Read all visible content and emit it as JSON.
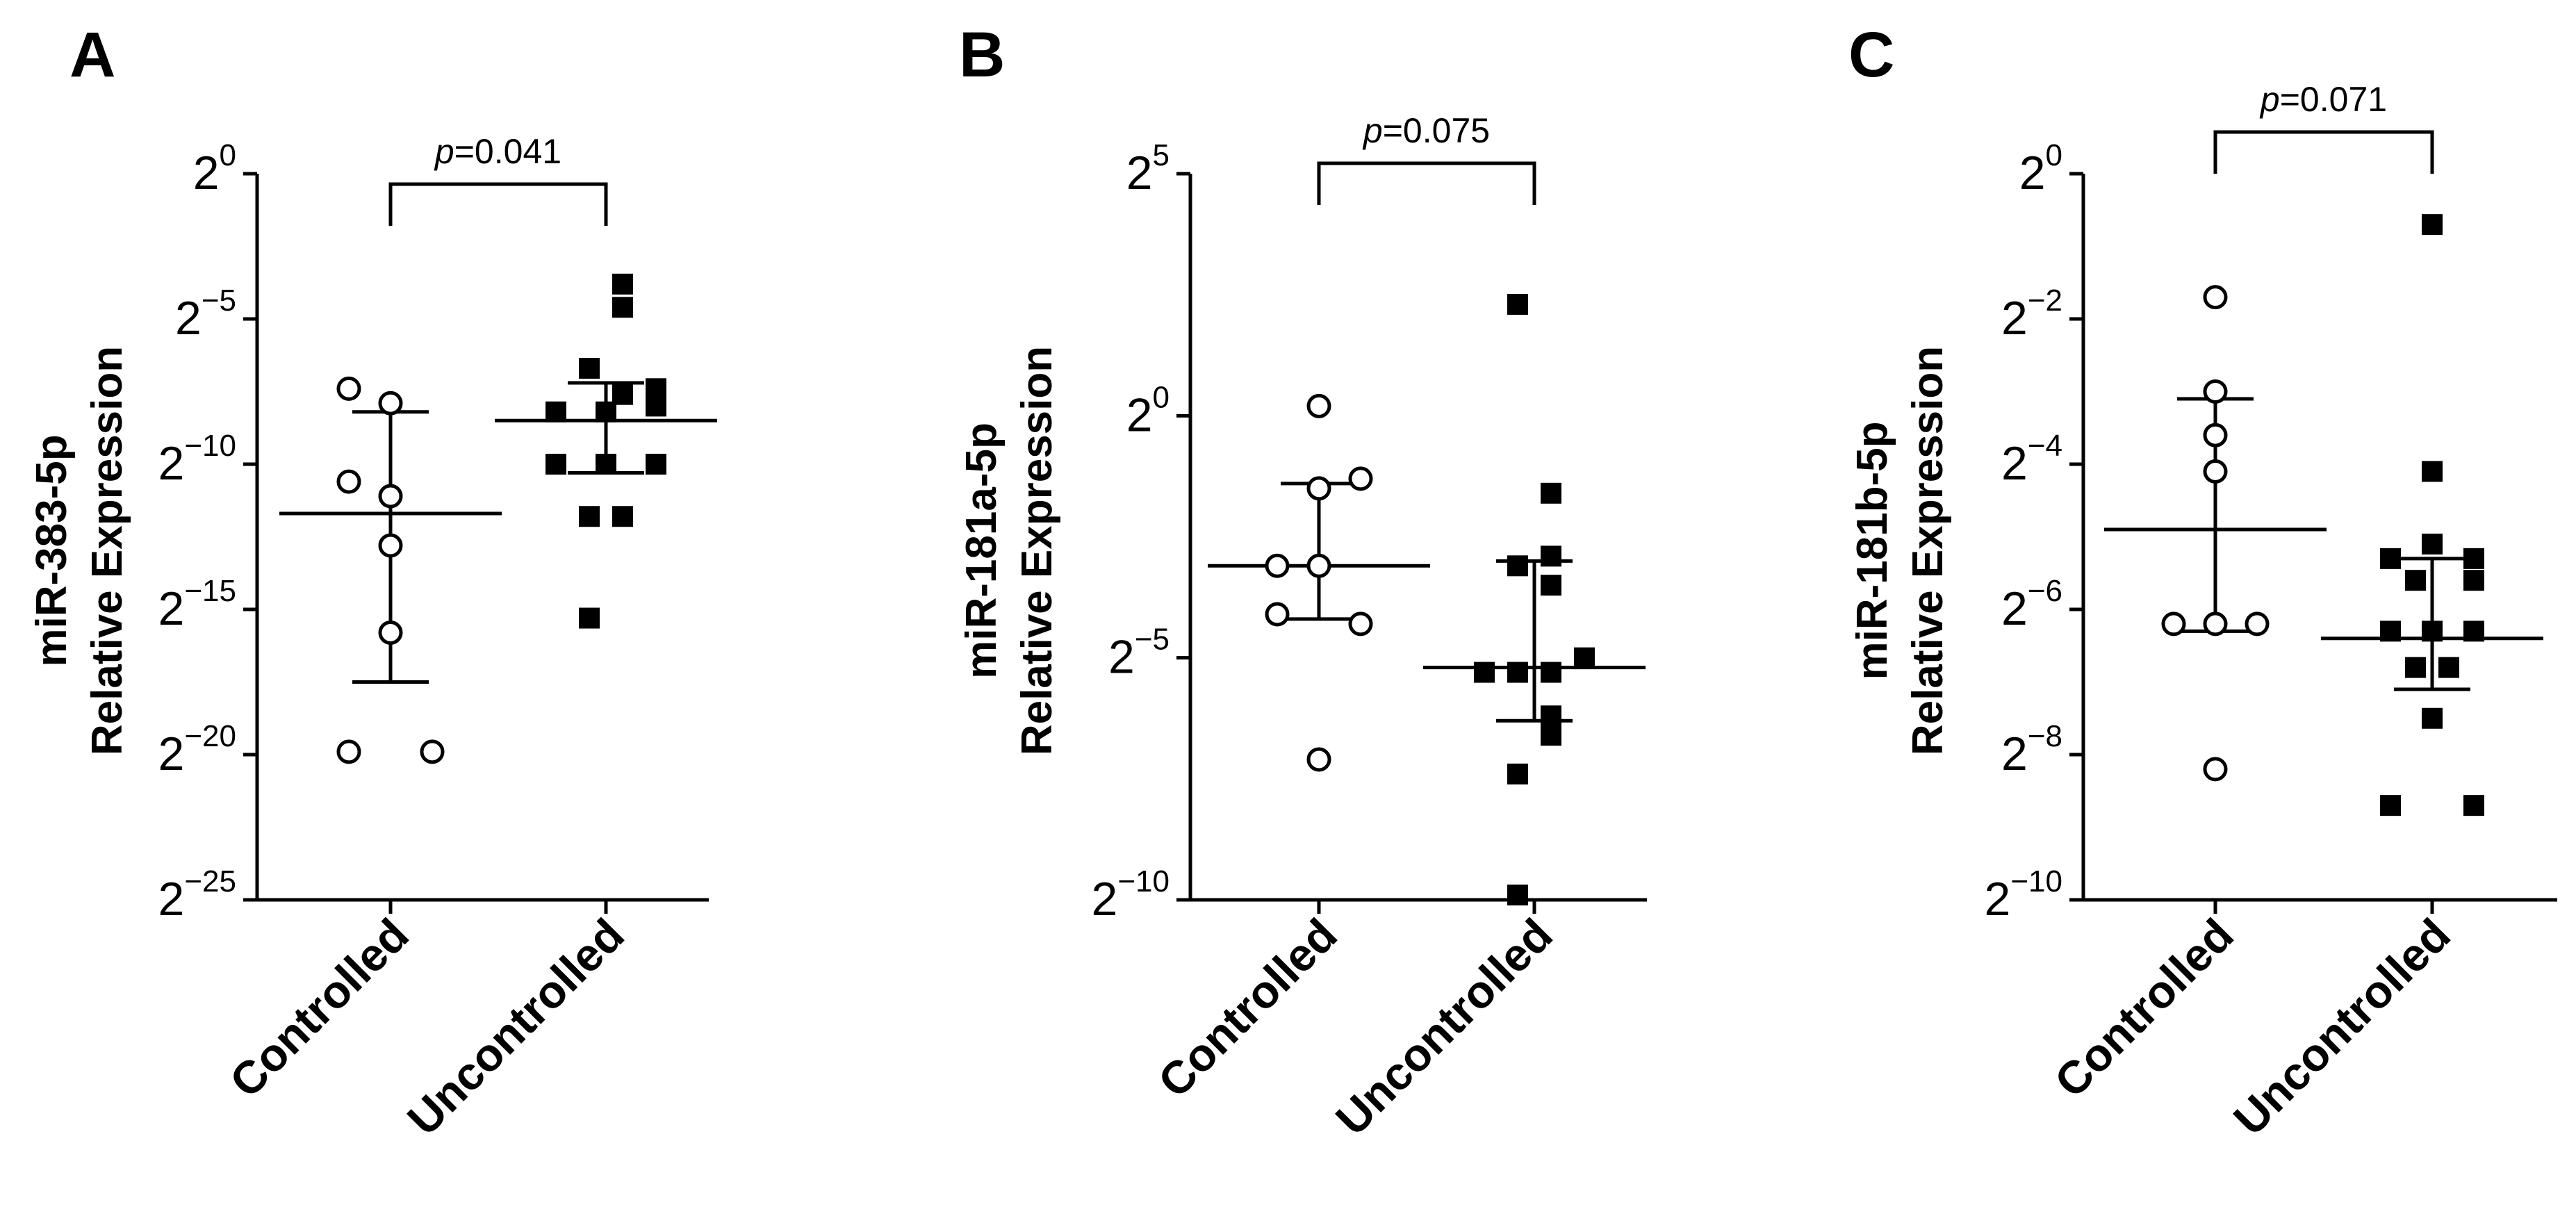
{
  "chart_data": [
    {
      "panel": "A",
      "type": "scatter",
      "ylabel_line1": "miR-383-5p",
      "ylabel_line2": "Relative Expression",
      "yscale": "log2",
      "ylim_exp": [
        -25,
        0
      ],
      "yticks": [
        {
          "base": "2",
          "exp": "0",
          "value": 0
        },
        {
          "base": "2",
          "exp": "−5",
          "value": -5
        },
        {
          "base": "2",
          "exp": "−10",
          "value": -10
        },
        {
          "base": "2",
          "exp": "−15",
          "value": -15
        },
        {
          "base": "2",
          "exp": "−20",
          "value": -20
        },
        {
          "base": "2",
          "exp": "−25",
          "value": -25
        }
      ],
      "categories": [
        "Controlled",
        "Uncontrolled"
      ],
      "pvalue_prefix": "p",
      "pvalue_text": "=0.041",
      "series": [
        {
          "marker": "open-circle",
          "points": [
            [
              -0.25,
              -7.4
            ],
            [
              0.0,
              -7.9
            ],
            [
              -0.25,
              -10.6
            ],
            [
              0.0,
              -11.1
            ],
            [
              0.0,
              -12.8
            ],
            [
              0.0,
              -15.8
            ],
            [
              -0.25,
              -19.9
            ],
            [
              0.25,
              -19.9
            ]
          ],
          "mean": -11.7,
          "sd_upper": -8.2,
          "sd_lower": -17.5
        },
        {
          "marker": "filled-square",
          "points": [
            [
              0.1,
              -3.8
            ],
            [
              0.1,
              -4.6
            ],
            [
              -0.1,
              -6.7
            ],
            [
              0.1,
              -7.6
            ],
            [
              0.3,
              -7.4
            ],
            [
              -0.3,
              -8.2
            ],
            [
              0.0,
              -8.2
            ],
            [
              0.3,
              -8.0
            ],
            [
              -0.3,
              -10.0
            ],
            [
              0.0,
              -10.0
            ],
            [
              0.3,
              -10.0
            ],
            [
              -0.1,
              -11.8
            ],
            [
              0.1,
              -11.8
            ],
            [
              -0.1,
              -15.3
            ]
          ],
          "mean": -8.5,
          "sd_upper": -7.2,
          "sd_lower": -10.3
        }
      ]
    },
    {
      "panel": "B",
      "type": "scatter",
      "ylabel_line1": "miR-181a-5p",
      "ylabel_line2": "Relative Expression",
      "yscale": "log2",
      "ylim_exp": [
        -10,
        5
      ],
      "yticks": [
        {
          "base": "2",
          "exp": "5",
          "value": 5
        },
        {
          "base": "2",
          "exp": "0",
          "value": 0
        },
        {
          "base": "2",
          "exp": "−5",
          "value": -5
        },
        {
          "base": "2",
          "exp": "−10",
          "value": -10
        }
      ],
      "categories": [
        "Controlled",
        "Uncontrolled"
      ],
      "pvalue_prefix": "p",
      "pvalue_text": "=0.075",
      "series": [
        {
          "marker": "open-circle",
          "points": [
            [
              0.0,
              0.2
            ],
            [
              0.0,
              -1.5
            ],
            [
              0.25,
              -1.3
            ],
            [
              -0.25,
              -3.1
            ],
            [
              0.0,
              -3.1
            ],
            [
              -0.25,
              -4.1
            ],
            [
              0.25,
              -4.3
            ],
            [
              0.0,
              -7.1
            ]
          ],
          "mean": -3.1,
          "sd_upper": -1.4,
          "sd_lower": -4.2
        },
        {
          "marker": "filled-square",
          "points": [
            [
              -0.1,
              2.3
            ],
            [
              0.1,
              -1.6
            ],
            [
              0.1,
              -2.9
            ],
            [
              -0.1,
              -3.1
            ],
            [
              0.1,
              -3.5
            ],
            [
              -0.3,
              -5.3
            ],
            [
              -0.1,
              -5.3
            ],
            [
              0.1,
              -5.3
            ],
            [
              0.3,
              -5.0
            ],
            [
              0.1,
              -6.2
            ],
            [
              0.1,
              -6.6
            ],
            [
              -0.1,
              -7.4
            ],
            [
              -0.1,
              -9.9
            ]
          ],
          "mean": -5.2,
          "sd_upper": -3.0,
          "sd_lower": -6.3
        }
      ]
    },
    {
      "panel": "C",
      "type": "scatter",
      "ylabel_line1": "miR-181b-5p",
      "ylabel_line2": "Relative Expression",
      "yscale": "log2",
      "ylim_exp": [
        -10,
        0
      ],
      "yticks": [
        {
          "base": "2",
          "exp": "0",
          "value": 0
        },
        {
          "base": "2",
          "exp": "−2",
          "value": -2
        },
        {
          "base": "2",
          "exp": "−4",
          "value": -4
        },
        {
          "base": "2",
          "exp": "−6",
          "value": -6
        },
        {
          "base": "2",
          "exp": "−8",
          "value": -8
        },
        {
          "base": "2",
          "exp": "−10",
          "value": -10
        }
      ],
      "categories": [
        "Controlled",
        "Uncontrolled"
      ],
      "pvalue_prefix": "p",
      "pvalue_text": "=0.071",
      "series": [
        {
          "marker": "open-circle",
          "points": [
            [
              0.0,
              -1.7
            ],
            [
              0.0,
              -3.0
            ],
            [
              0.0,
              -3.6
            ],
            [
              0.0,
              -4.1
            ],
            [
              -0.25,
              -6.2
            ],
            [
              0.0,
              -6.2
            ],
            [
              0.25,
              -6.2
            ],
            [
              0.0,
              -8.2
            ]
          ],
          "mean": -4.9,
          "sd_upper": -3.1,
          "sd_lower": -6.3
        },
        {
          "marker": "filled-square",
          "points": [
            [
              0.0,
              -0.7
            ],
            [
              0.0,
              -4.1
            ],
            [
              0.0,
              -5.1
            ],
            [
              -0.25,
              -5.3
            ],
            [
              0.25,
              -5.3
            ],
            [
              0.25,
              -5.6
            ],
            [
              -0.1,
              -5.6
            ],
            [
              -0.25,
              -6.3
            ],
            [
              0.0,
              -6.3
            ],
            [
              0.25,
              -6.3
            ],
            [
              -0.1,
              -6.8
            ],
            [
              0.1,
              -6.8
            ],
            [
              0.0,
              -7.5
            ],
            [
              -0.25,
              -8.7
            ],
            [
              0.25,
              -8.7
            ]
          ],
          "mean": -6.4,
          "sd_upper": -5.3,
          "sd_lower": -7.1
        }
      ]
    }
  ]
}
